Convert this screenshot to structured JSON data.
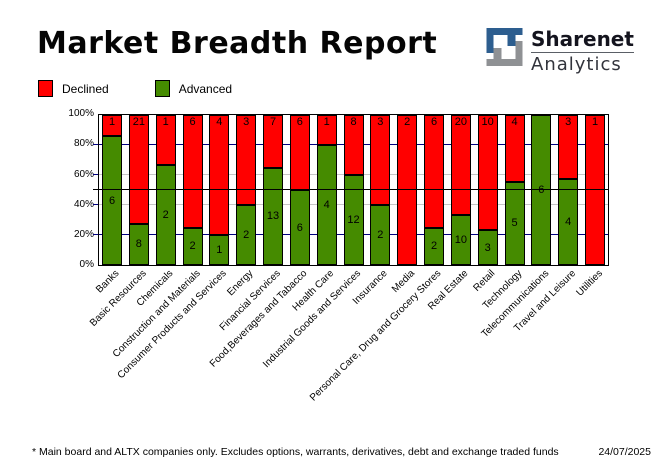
{
  "header": {
    "title": "Market Breadth Report",
    "logo": {
      "line1": "Sharenet",
      "line2": "Analytics",
      "mark_blue": "#2d5e8f",
      "mark_gray": "#8f9194"
    }
  },
  "legend": {
    "declined_label": "Declined",
    "advanced_label": "Advanced"
  },
  "chart_data": {
    "type": "bar",
    "stacked": true,
    "stack_mode": "percent",
    "title": "Market Breadth Report",
    "categories": [
      "Banks",
      "Basic Resources",
      "Chemicals",
      "Construction and Materials",
      "Consumer Products and Services",
      "Energy",
      "Financial Services",
      "Food,Beverages and Tabacco",
      "Health Care",
      "Industrial Goods and Services",
      "Insurance",
      "Media",
      "Personal Care, Drug and Grocery Stores",
      "Real Estate",
      "Retail",
      "Technology",
      "Telecommunications",
      "Travel and Leisure",
      "Utilities"
    ],
    "series": [
      {
        "name": "Declined",
        "color": "#ff0000",
        "values": [
          1,
          21,
          1,
          6,
          4,
          3,
          7,
          6,
          1,
          8,
          3,
          2,
          6,
          20,
          10,
          4,
          0,
          3,
          1
        ]
      },
      {
        "name": "Advanced",
        "color": "#458b00",
        "values": [
          6,
          8,
          2,
          2,
          1,
          2,
          13,
          6,
          4,
          12,
          2,
          0,
          2,
          10,
          3,
          5,
          6,
          4,
          0
        ]
      }
    ],
    "ylim": [
      0,
      100
    ],
    "y_ticks": [
      "100%",
      "80%",
      "60%",
      "40%",
      "20%",
      "0%"
    ],
    "gridlines": [
      {
        "pct": 80,
        "color": "#000080",
        "front": false
      },
      {
        "pct": 60,
        "color": "#c6c6c6",
        "front": false
      },
      {
        "pct": 50,
        "color": "#000000",
        "front": true
      },
      {
        "pct": 40,
        "color": "#c6c6c6",
        "front": false
      },
      {
        "pct": 20,
        "color": "#000080",
        "front": false
      }
    ],
    "legend_position": "top-left",
    "xlabel": "",
    "ylabel": ""
  },
  "footer": {
    "note": "* Main board and ALTX companies only. Excludes options, warrants, derivatives, debt and exchange traded funds",
    "date": "24/07/2025"
  }
}
